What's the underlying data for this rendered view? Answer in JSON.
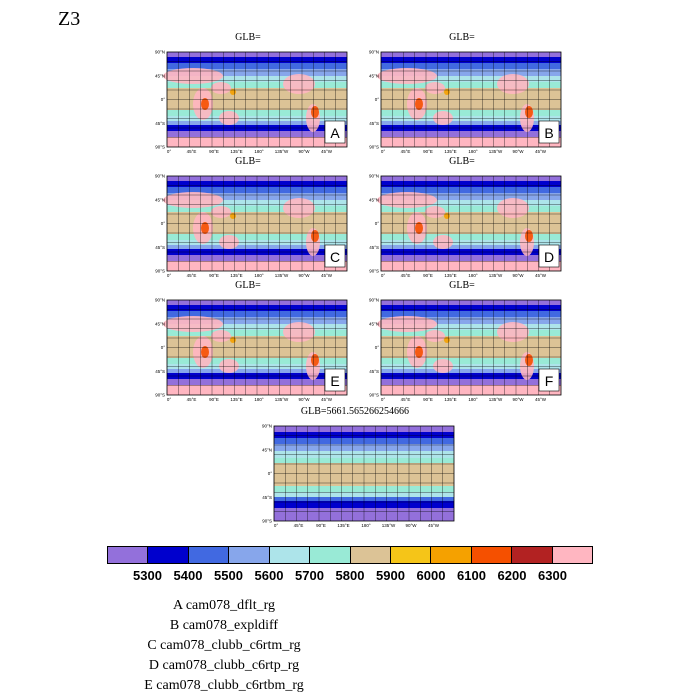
{
  "figure": {
    "title": "Z3"
  },
  "panels": [
    {
      "id": "A",
      "title": "GLB=",
      "label": "A"
    },
    {
      "id": "B",
      "title": "GLB=",
      "label": "B"
    },
    {
      "id": "C",
      "title": "GLB=",
      "label": "C"
    },
    {
      "id": "D",
      "title": "GLB=",
      "label": "D"
    },
    {
      "id": "E",
      "title": "GLB=",
      "label": "E"
    },
    {
      "id": "F",
      "title": "GLB=",
      "label": "F"
    },
    {
      "id": "OBS",
      "title": "GLB=5661.565266254666",
      "label": ""
    }
  ],
  "axes": {
    "lat_ticks": [
      "90°N",
      "45°N",
      "0°",
      "45°S",
      "90°S"
    ],
    "lon_ticks": [
      "0°",
      "45°E",
      "90°E",
      "135°E",
      "180°",
      "135°W",
      "90°W",
      "45°W"
    ]
  },
  "colorbar": {
    "colors": [
      "#9370db",
      "#0000cd",
      "#4169e1",
      "#87a6eb",
      "#ade4ea",
      "#99ead6",
      "#dcc396",
      "#f5c518",
      "#f5a100",
      "#f55000",
      "#b22222",
      "#ffb6c1"
    ],
    "labels": [
      "5300",
      "5400",
      "5500",
      "5600",
      "5700",
      "5800",
      "5900",
      "6000",
      "6100",
      "6200",
      "6300"
    ]
  },
  "legend": [
    "A  cam078_dflt_rg",
    "B  cam078_expldiff",
    "C  cam078_clubb_c6rtm_rg",
    "D  cam078_clubb_c6rtp_rg",
    "E  cam078_clubb_c6rtbm_rg"
  ]
}
